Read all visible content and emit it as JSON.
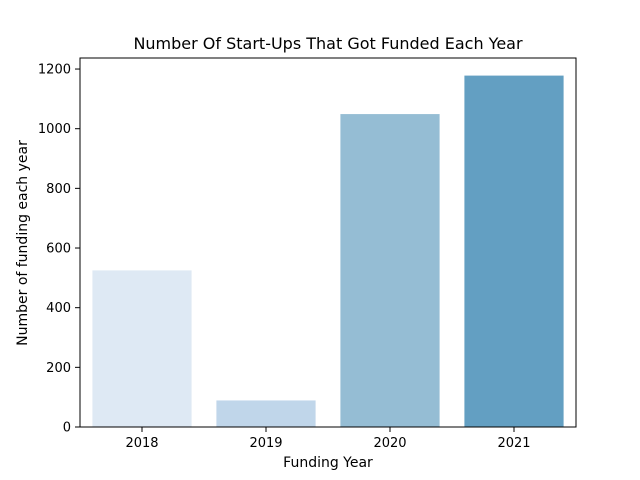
{
  "chart_data": {
    "type": "bar",
    "title": "Number Of Start-Ups That Got Funded Each Year",
    "xlabel": "Funding Year",
    "ylabel": "Number of funding each year",
    "categories": [
      "2018",
      "2019",
      "2020",
      "2021"
    ],
    "values": [
      525,
      89,
      1049,
      1178
    ],
    "bar_colors": [
      "#dee9f4",
      "#c0d6ea",
      "#95bdd4",
      "#639fc2"
    ],
    "ylim": [
      0,
      1237
    ],
    "yticks": [
      0,
      200,
      400,
      600,
      800,
      1000,
      1200
    ],
    "grid": false,
    "legend": "none"
  }
}
